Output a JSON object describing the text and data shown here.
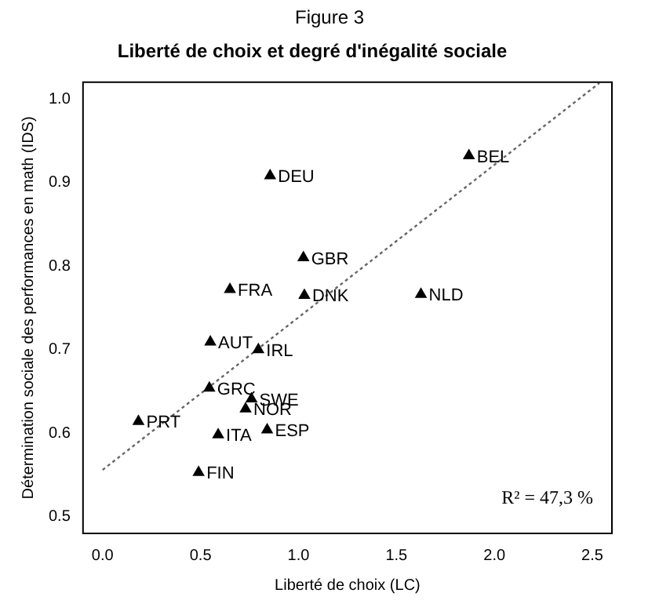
{
  "chart_data": {
    "type": "scatter",
    "title": "Liberté de choix et degré d'inégalité sociale",
    "xlabel": "Liberté de choix (LC)",
    "ylabel": "Détermination sociale des performances en math (IDS)",
    "xlim": [
      -0.1,
      2.6
    ],
    "xticks": [
      {
        "value": 0,
        "label": "0.0"
      },
      0.5,
      {
        "value": 1,
        "label": "1.0"
      },
      1.5,
      {
        "value": 2,
        "label": "2.0"
      },
      2.5
    ],
    "ylim": [
      0.48,
      1.02
    ],
    "yticks": [
      0.5,
      0.6,
      0.7,
      0.8,
      0.9,
      {
        "value": 1,
        "label": "1.0"
      }
    ],
    "grid": false,
    "legend": false,
    "marker": "triangle",
    "series": [
      {
        "color": "#000000",
        "x": [
          1.87,
          0.855,
          1.025,
          0.65,
          1.03,
          1.625,
          0.55,
          0.795,
          0.545,
          0.76,
          0.73,
          0.183,
          0.59,
          0.84,
          0.49
        ],
        "values": [
          0.932,
          0.908,
          0.81,
          0.772,
          0.765,
          0.766,
          0.709,
          0.7,
          0.654,
          0.641,
          0.629,
          0.614,
          0.598,
          0.604,
          0.553
        ]
      },
      {
        "type": "line",
        "color": "#666666",
        "line_style": "dotted",
        "marker": "none",
        "x": [
          0,
          2.536
        ],
        "values": [
          0.556,
          1.019
        ]
      }
    ],
    "annotations": [
      "Figure 3",
      "R² = 47,3 %",
      {
        "text": "BEL",
        "x": 1.87,
        "y": 0.932
      },
      {
        "text": "DEU",
        "x": 0.855,
        "y": 0.908
      },
      {
        "text": "GBR",
        "x": 1.025,
        "y": 0.81
      },
      {
        "text": "FRA",
        "x": 0.65,
        "y": 0.772
      },
      {
        "text": "DNK",
        "x": 1.03,
        "y": 0.765
      },
      {
        "text": "NLD",
        "x": 1.625,
        "y": 0.766
      },
      {
        "text": "AUT",
        "x": 0.55,
        "y": 0.709
      },
      {
        "text": "IRL",
        "x": 0.795,
        "y": 0.7
      },
      {
        "text": "GRC",
        "x": 0.545,
        "y": 0.654
      },
      {
        "text": "SWE",
        "x": 0.76,
        "y": 0.641
      },
      {
        "text": "NOR",
        "x": 0.73,
        "y": 0.629
      },
      {
        "text": "PRT",
        "x": 0.183,
        "y": 0.614
      },
      {
        "text": "ITA",
        "x": 0.59,
        "y": 0.598
      },
      {
        "text": "ESP",
        "x": 0.84,
        "y": 0.604
      },
      {
        "text": "FIN",
        "x": 0.49,
        "y": 0.553
      }
    ]
  }
}
